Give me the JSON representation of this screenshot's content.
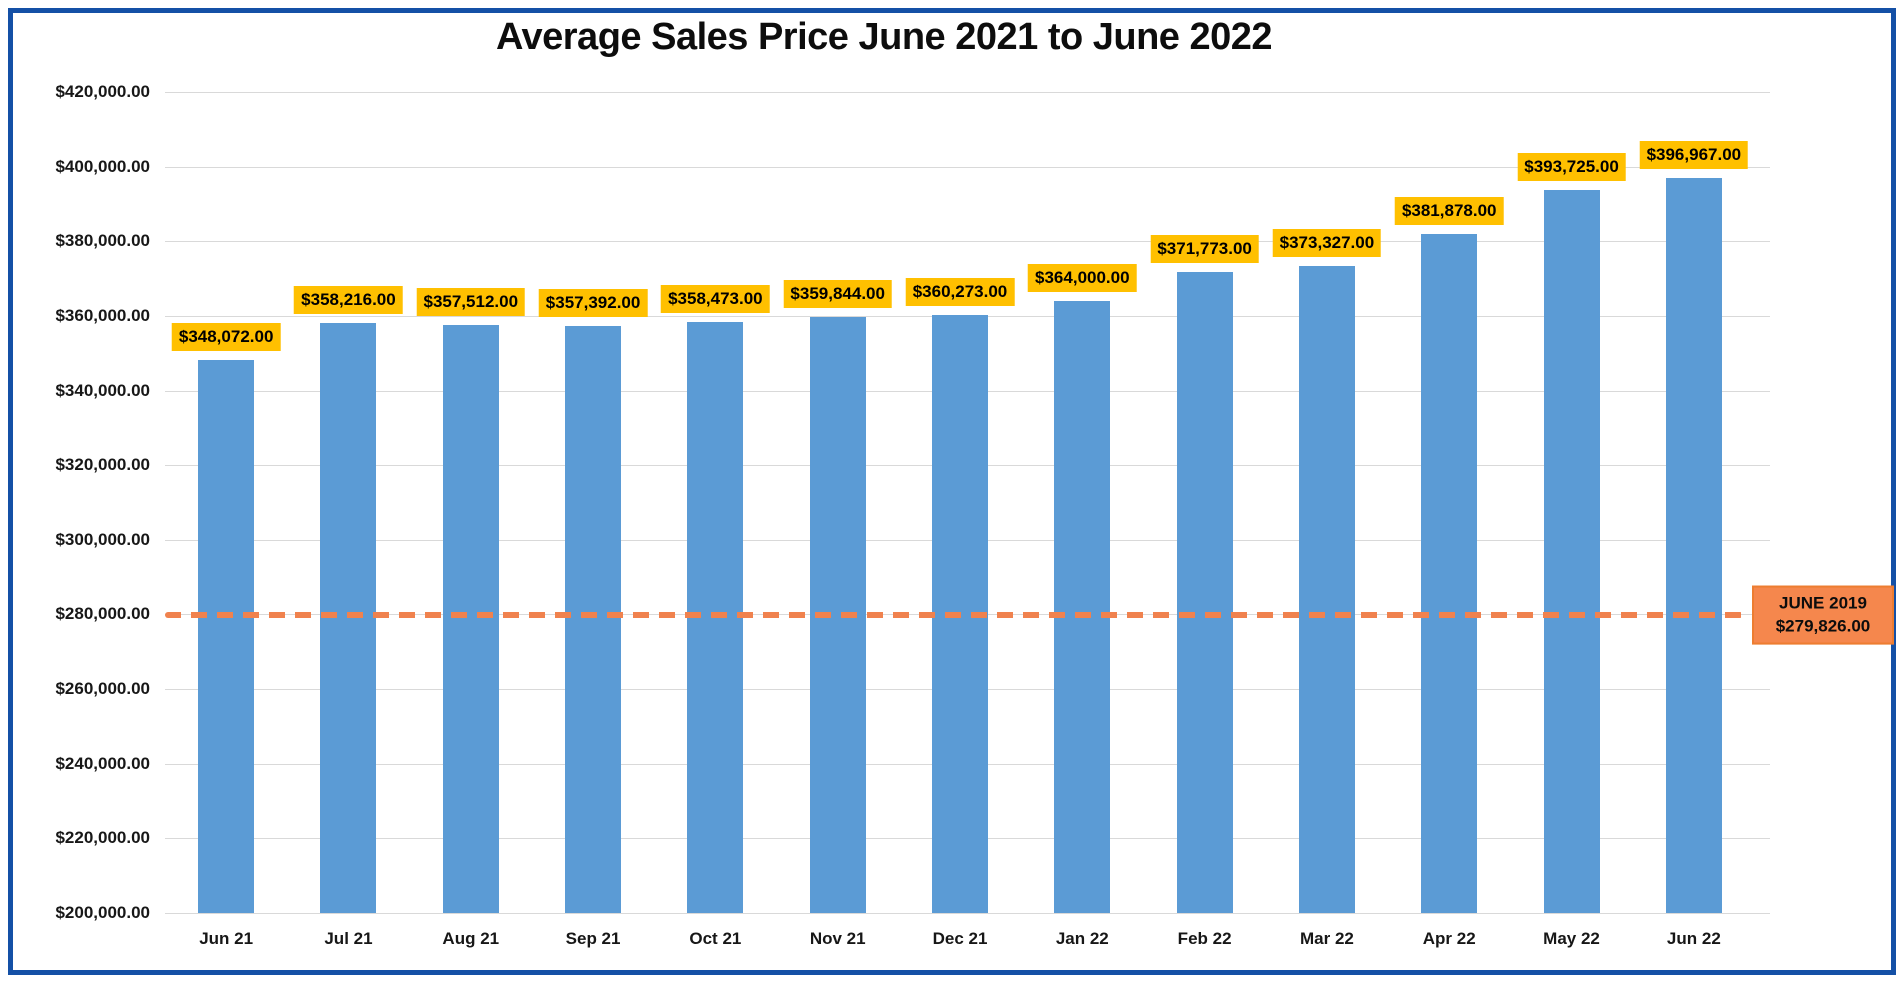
{
  "chart_data": {
    "type": "bar",
    "title": "Average Sales Price June 2021 to June 2022",
    "categories": [
      "Jun 21",
      "Jul 21",
      "Aug 21",
      "Sep 21",
      "Oct 21",
      "Nov 21",
      "Dec 21",
      "Jan 22",
      "Feb 22",
      "Mar 22",
      "Apr 22",
      "May 22",
      "Jun 22"
    ],
    "values": [
      348072,
      358216,
      357512,
      357392,
      358473,
      359844,
      360273,
      364000,
      371773,
      373327,
      381878,
      393725,
      396967
    ],
    "value_labels": [
      "$348,072.00",
      "$358,216.00",
      "$357,512.00",
      "$357,392.00",
      "$358,473.00",
      "$359,844.00",
      "$360,273.00",
      "$364,000.00",
      "$371,773.00",
      "$373,327.00",
      "$381,878.00",
      "$393,725.00",
      "$396,967.00"
    ],
    "xlabel": "",
    "ylabel": "",
    "ylim": [
      200000,
      420000
    ],
    "yticks": [
      420000,
      400000,
      380000,
      360000,
      340000,
      320000,
      300000,
      280000,
      260000,
      240000,
      220000,
      200000
    ],
    "ytick_labels": [
      "$420,000.00",
      "$400,000.00",
      "$380,000.00",
      "$360,000.00",
      "$340,000.00",
      "$320,000.00",
      "$300,000.00",
      "$280,000.00",
      "$260,000.00",
      "$240,000.00",
      "$220,000.00",
      "$200,000.00"
    ],
    "grid": "horizontal",
    "legend": "none",
    "reference_line": {
      "value": 279826,
      "style": "dashed",
      "label_line1": "JUNE 2019",
      "label_line2": "$279,826.00"
    },
    "colors": {
      "bar": "#5b9bd5",
      "gridline": "#d9d9d9",
      "data_label_bg": "#ffc000",
      "data_label_text": "#000000",
      "reference_line": "#f0824e",
      "reference_label_bg": "#f5874d",
      "reference_label_border": "#ed7d31",
      "frame_border": "#1450a6",
      "text": "#171717"
    }
  }
}
